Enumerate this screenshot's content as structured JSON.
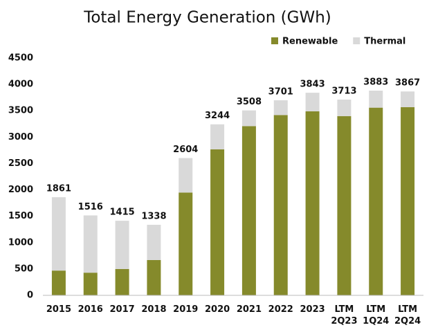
{
  "chart_data": {
    "type": "stacked_bar",
    "title": "Total Energy Generation (GWh)",
    "categories": [
      "2015",
      "2016",
      "2017",
      "2018",
      "2019",
      "2020",
      "2021",
      "2022",
      "2023",
      "LTM 2Q23",
      "LTM 1Q24",
      "LTM 2Q24"
    ],
    "series": [
      {
        "name": "Renewable",
        "color": "#858a2b",
        "values": [
          470,
          430,
          500,
          670,
          1950,
          2770,
          3210,
          3420,
          3490,
          3400,
          3560,
          3570
        ]
      },
      {
        "name": "Thermal",
        "color": "#d9d9d9",
        "values": [
          1391,
          1086,
          915,
          668,
          654,
          474,
          298,
          281,
          353,
          313,
          323,
          297
        ]
      }
    ],
    "totals": [
      1861,
      1516,
      1415,
      1338,
      2604,
      3244,
      3508,
      3701,
      3843,
      3713,
      3883,
      3867
    ],
    "ylim": [
      0,
      4500
    ],
    "yticks": [
      0,
      500,
      1000,
      1500,
      2000,
      2500,
      3000,
      3500,
      4000,
      4500
    ],
    "legend": "top-right"
  }
}
